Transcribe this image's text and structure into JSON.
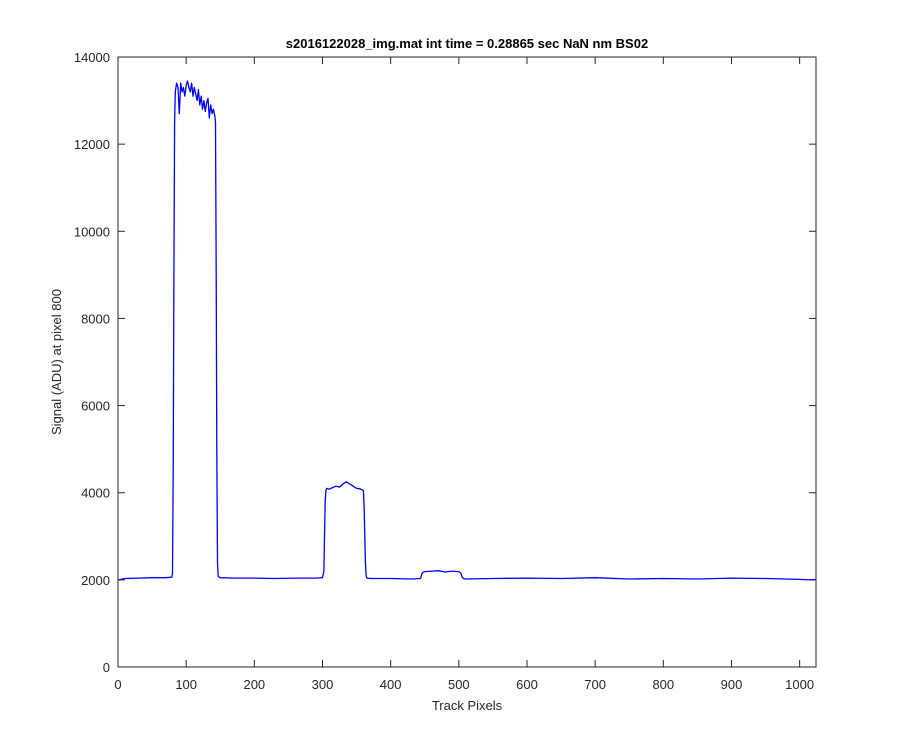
{
  "chart_data": {
    "type": "line",
    "title": "s2016122028_img.mat int time = 0.28865 sec  NaN nm BS02",
    "xlabel": "Track Pixels",
    "ylabel": "Signal (ADU) at pixel 800",
    "xlim": [
      0,
      1024
    ],
    "ylim": [
      0,
      14000
    ],
    "xticks": [
      0,
      100,
      200,
      300,
      400,
      500,
      600,
      700,
      800,
      900,
      1000
    ],
    "yticks": [
      0,
      2000,
      4000,
      6000,
      8000,
      10000,
      12000,
      14000
    ],
    "grid": false,
    "line_color": "#0000ff",
    "series": [
      {
        "x": [
          1,
          10,
          30,
          50,
          70,
          79,
          80,
          81,
          82,
          83,
          84,
          86,
          88,
          90,
          92,
          94,
          96,
          98,
          100,
          102,
          104,
          106,
          108,
          110,
          112,
          114,
          116,
          118,
          120,
          122,
          124,
          126,
          128,
          130,
          132,
          134,
          136,
          138,
          140,
          142,
          143,
          144,
          145,
          146,
          147,
          150,
          170,
          200,
          230,
          260,
          290,
          300,
          302,
          303,
          304,
          305,
          306,
          310,
          315,
          320,
          325,
          330,
          335,
          340,
          345,
          350,
          355,
          360,
          361,
          362,
          363,
          364,
          365,
          370,
          400,
          430,
          444,
          446,
          448,
          450,
          460,
          470,
          480,
          490,
          500,
          503,
          505,
          507,
          510,
          550,
          600,
          650,
          700,
          750,
          800,
          850,
          900,
          950,
          1000,
          1015,
          1024
        ],
        "y": [
          2000,
          2030,
          2040,
          2050,
          2050,
          2060,
          2150,
          4500,
          9000,
          12500,
          13200,
          13400,
          13300,
          12700,
          13400,
          13200,
          13300,
          13100,
          13350,
          13450,
          13300,
          13200,
          13400,
          13100,
          13300,
          13150,
          13000,
          13250,
          12900,
          13100,
          12800,
          13000,
          12750,
          12950,
          13050,
          12600,
          12900,
          12700,
          12800,
          12650,
          12500,
          9000,
          5000,
          2400,
          2080,
          2050,
          2040,
          2040,
          2030,
          2040,
          2040,
          2050,
          2200,
          3000,
          3800,
          4050,
          4100,
          4080,
          4120,
          4150,
          4130,
          4200,
          4250,
          4200,
          4150,
          4100,
          4090,
          4050,
          3700,
          3000,
          2400,
          2100,
          2040,
          2030,
          2030,
          2020,
          2030,
          2150,
          2180,
          2190,
          2200,
          2210,
          2180,
          2200,
          2190,
          2150,
          2060,
          2030,
          2020,
          2030,
          2040,
          2030,
          2050,
          2020,
          2030,
          2020,
          2040,
          2030,
          2010,
          2000,
          2010
        ]
      }
    ]
  }
}
